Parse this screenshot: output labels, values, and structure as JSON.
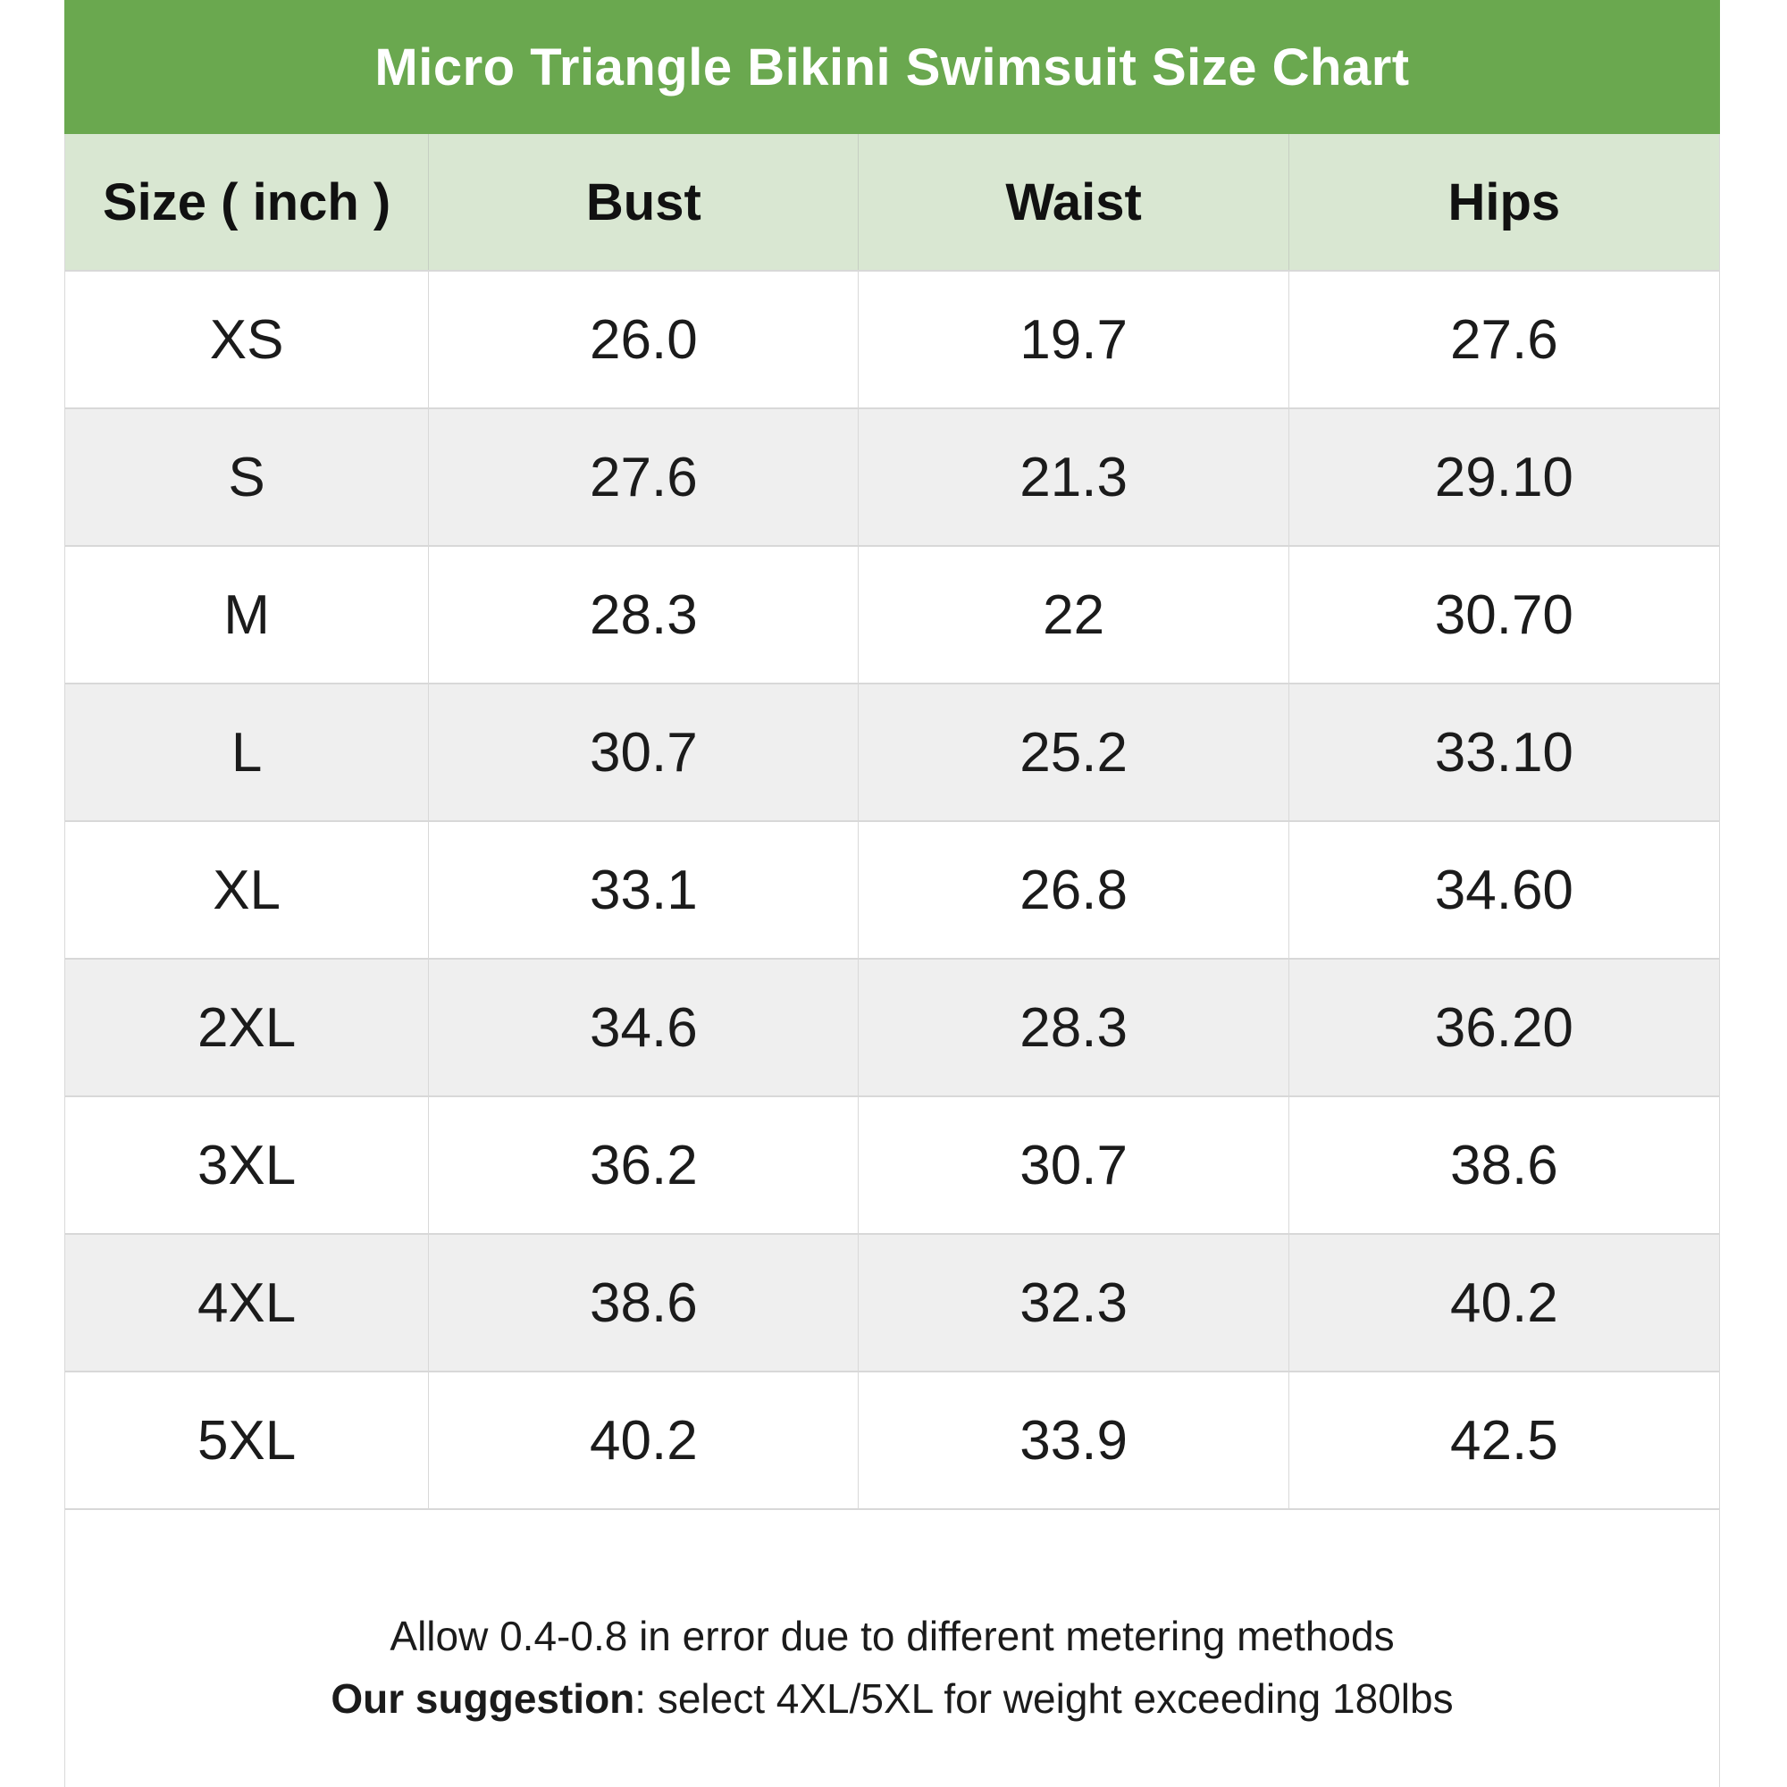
{
  "chart_data": {
    "type": "table",
    "title": "Micro Triangle Bikini Swimsuit Size Chart",
    "columns": [
      "Size ( inch )",
      "Bust",
      "Waist",
      "Hips"
    ],
    "rows": [
      {
        "size": "XS",
        "bust": "26.0",
        "waist": "19.7",
        "hips": "27.6"
      },
      {
        "size": "S",
        "bust": "27.6",
        "waist": "21.3",
        "hips": "29.10"
      },
      {
        "size": "M",
        "bust": "28.3",
        "waist": "22",
        "hips": "30.70"
      },
      {
        "size": "L",
        "bust": "30.7",
        "waist": "25.2",
        "hips": "33.10"
      },
      {
        "size": "XL",
        "bust": "33.1",
        "waist": "26.8",
        "hips": "34.60"
      },
      {
        "size": "2XL",
        "bust": "34.6",
        "waist": "28.3",
        "hips": "36.20"
      },
      {
        "size": "3XL",
        "bust": "36.2",
        "waist": "30.7",
        "hips": "38.6"
      },
      {
        "size": "4XL",
        "bust": "38.6",
        "waist": "32.3",
        "hips": "40.2"
      },
      {
        "size": "5XL",
        "bust": "40.2",
        "waist": "33.9",
        "hips": "42.5"
      }
    ],
    "note_line1": "Allow 0.4-0.8 in error due to different metering methods",
    "note_line2_bold": "Our suggestion",
    "note_line2_rest": ": select 4XL/5XL for weight exceeding 180lbs",
    "layout_hints": {
      "units": "inches",
      "alternating_row_shading": true,
      "grid": true
    }
  },
  "colors": {
    "title_bar_green": "#6aa84f",
    "header_row_green": "#d9e7d2",
    "alt_row_gray": "#efefef",
    "border_gray": "#d9d9d9",
    "title_text": "#ffffff",
    "body_text": "#1b1b1b"
  }
}
